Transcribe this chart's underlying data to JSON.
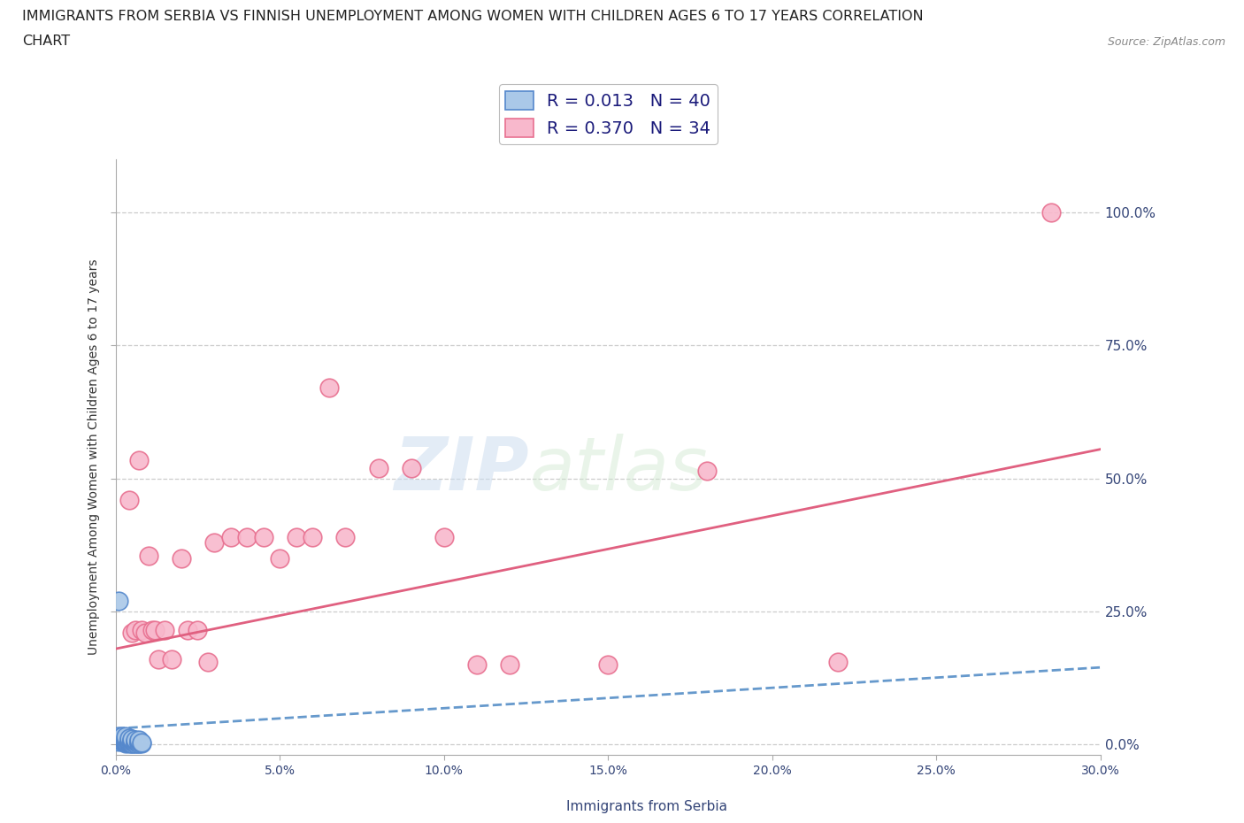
{
  "title_line1": "IMMIGRANTS FROM SERBIA VS FINNISH UNEMPLOYMENT AMONG WOMEN WITH CHILDREN AGES 6 TO 17 YEARS CORRELATION",
  "title_line2": "CHART",
  "source": "Source: ZipAtlas.com",
  "xlabel": "Immigrants from Serbia",
  "ylabel": "Unemployment Among Women with Children Ages 6 to 17 years",
  "xlim": [
    0.0,
    0.3
  ],
  "ylim": [
    -0.02,
    1.1
  ],
  "xticks": [
    0.0,
    0.05,
    0.1,
    0.15,
    0.2,
    0.25,
    0.3
  ],
  "xticklabels": [
    "0.0%",
    "5.0%",
    "10.0%",
    "15.0%",
    "20.0%",
    "25.0%",
    "30.0%"
  ],
  "ytick_positions": [
    0.0,
    0.25,
    0.5,
    0.75,
    1.0
  ],
  "ytick_labels": [
    "0.0%",
    "25.0%",
    "50.0%",
    "75.0%",
    "100.0%"
  ],
  "grid_color": "#cccccc",
  "background_color": "#ffffff",
  "watermark_part1": "ZIP",
  "watermark_part2": "atlas",
  "serbia_fill_color": "#aac8e8",
  "serbia_edge_color": "#5588cc",
  "finns_fill_color": "#f8b8cc",
  "finns_edge_color": "#e87090",
  "serbia_line_color": "#6699cc",
  "finns_line_color": "#e06080",
  "serbia_R": 0.013,
  "serbia_N": 40,
  "finns_R": 0.37,
  "finns_N": 34,
  "serbia_x": [
    0.001,
    0.001,
    0.001,
    0.001,
    0.002,
    0.002,
    0.002,
    0.002,
    0.002,
    0.003,
    0.003,
    0.003,
    0.003,
    0.003,
    0.003,
    0.003,
    0.004,
    0.004,
    0.004,
    0.004,
    0.004,
    0.004,
    0.005,
    0.005,
    0.005,
    0.005,
    0.005,
    0.005,
    0.006,
    0.006,
    0.006,
    0.006,
    0.006,
    0.007,
    0.007,
    0.007,
    0.007,
    0.007,
    0.008,
    0.008
  ],
  "serbia_y": [
    0.005,
    0.01,
    0.015,
    0.27,
    0.005,
    0.008,
    0.01,
    0.012,
    0.015,
    0.002,
    0.004,
    0.006,
    0.008,
    0.01,
    0.012,
    0.015,
    0.002,
    0.004,
    0.006,
    0.008,
    0.01,
    0.012,
    0.002,
    0.003,
    0.005,
    0.007,
    0.009,
    0.011,
    0.002,
    0.003,
    0.005,
    0.007,
    0.009,
    0.002,
    0.003,
    0.005,
    0.007,
    0.009,
    0.002,
    0.004
  ],
  "finns_x": [
    0.004,
    0.005,
    0.006,
    0.007,
    0.008,
    0.009,
    0.01,
    0.011,
    0.012,
    0.013,
    0.015,
    0.017,
    0.02,
    0.022,
    0.025,
    0.028,
    0.03,
    0.035,
    0.04,
    0.045,
    0.05,
    0.055,
    0.06,
    0.065,
    0.07,
    0.08,
    0.09,
    0.1,
    0.11,
    0.12,
    0.15,
    0.18,
    0.22,
    0.285
  ],
  "finns_y": [
    0.46,
    0.21,
    0.215,
    0.535,
    0.215,
    0.21,
    0.355,
    0.215,
    0.215,
    0.16,
    0.215,
    0.16,
    0.35,
    0.215,
    0.215,
    0.155,
    0.38,
    0.39,
    0.39,
    0.39,
    0.35,
    0.39,
    0.39,
    0.67,
    0.39,
    0.52,
    0.52,
    0.39,
    0.15,
    0.15,
    0.15,
    0.515,
    0.155,
    1.0
  ],
  "finns_line_x0": 0.0,
  "finns_line_y0": 0.18,
  "finns_line_x1": 0.3,
  "finns_line_y1": 0.555,
  "serbia_line_x0": 0.0,
  "serbia_line_y0": 0.03,
  "serbia_line_x1": 0.3,
  "serbia_line_y1": 0.145
}
